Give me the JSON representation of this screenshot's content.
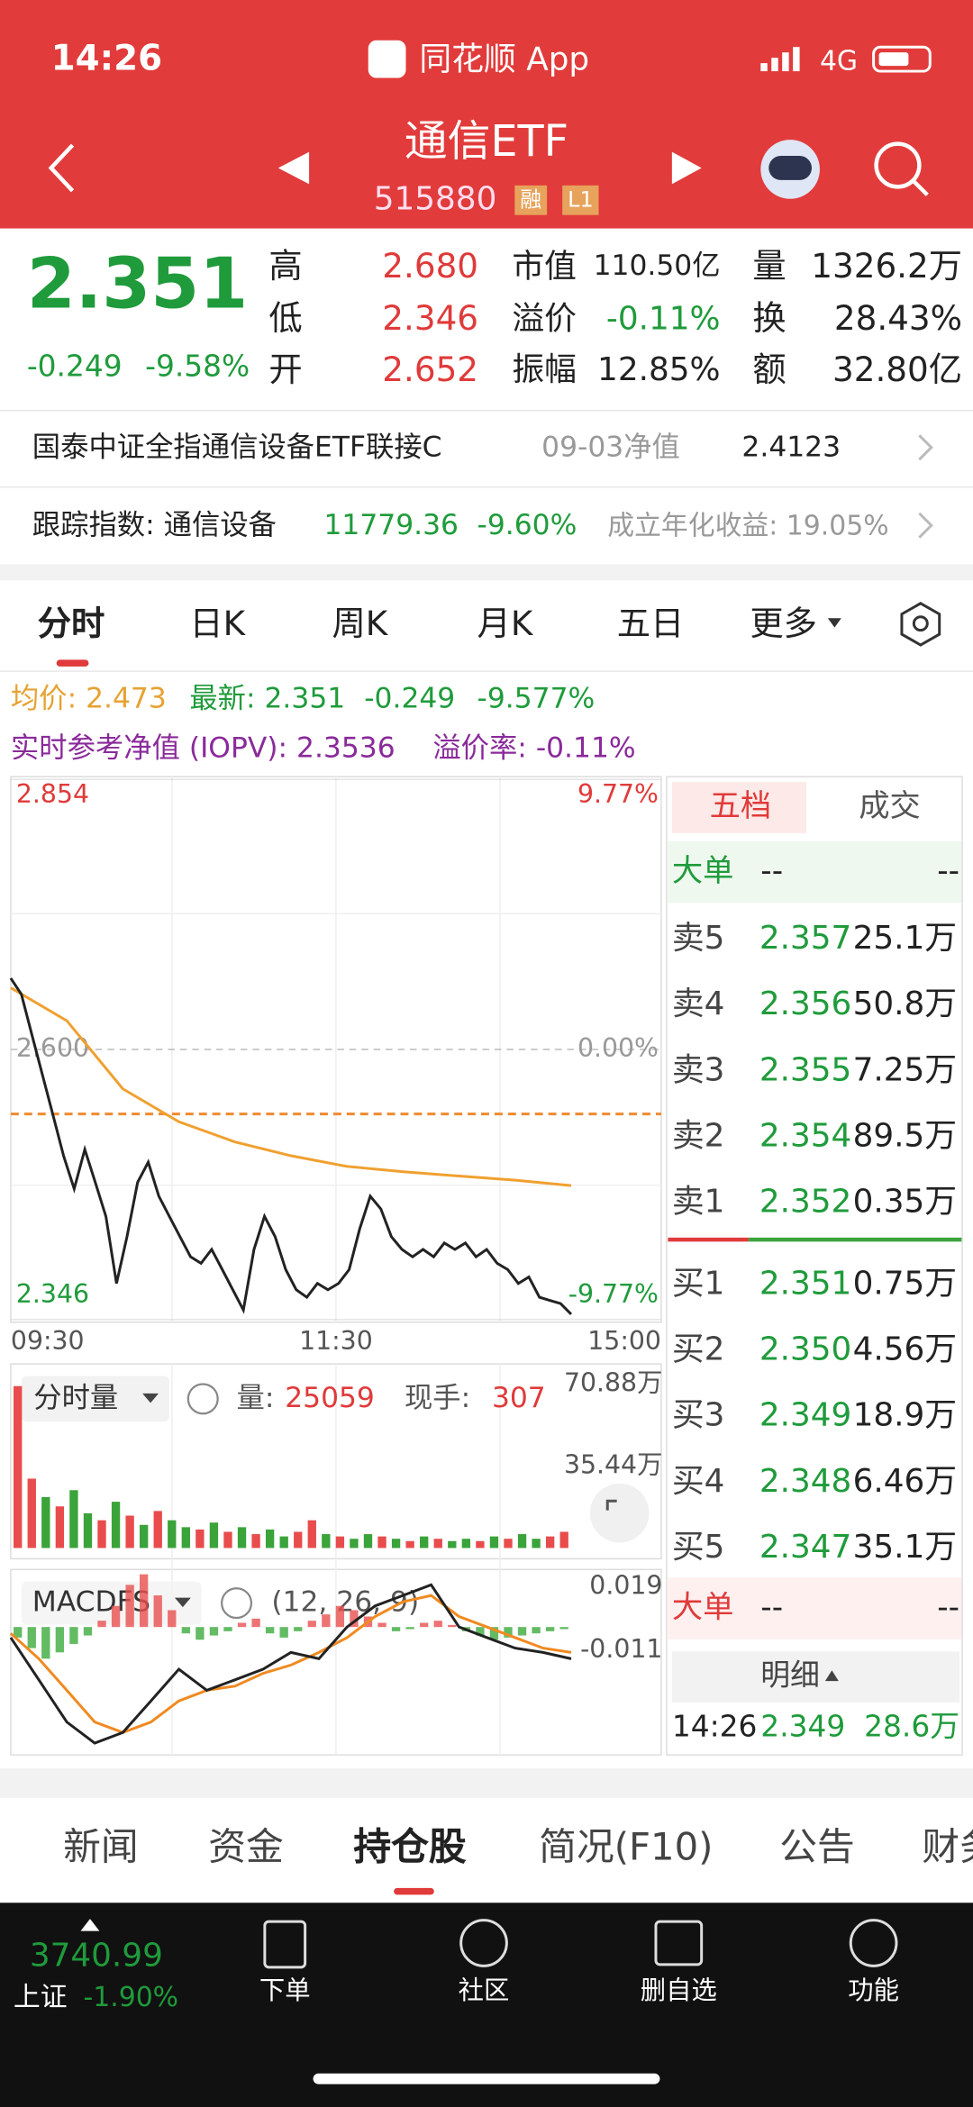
{
  "status_bar": {
    "time": "14:26",
    "app": "同花顺 App",
    "network": "4G"
  },
  "header": {
    "title": "通信ETF",
    "code": "515880",
    "tags": [
      "融",
      "L1"
    ]
  },
  "quote": {
    "price": "2.351",
    "change": "-0.249",
    "change_pct": "-9.58%",
    "stats": [
      [
        "高",
        "2.680"
      ],
      [
        "低",
        "2.346"
      ],
      [
        "开",
        "2.652"
      ],
      [
        "市值",
        "110.50亿"
      ],
      [
        "溢价",
        "-0.11%"
      ],
      [
        "振幅",
        "12.85%"
      ],
      [
        "量",
        "1326.2万"
      ],
      [
        "换",
        "28.43%"
      ],
      [
        "额",
        "32.80亿"
      ]
    ]
  },
  "fund_row": {
    "name": "国泰中证全指通信设备ETF联接C",
    "nav_label": "09-03净值",
    "nav": "2.4123"
  },
  "index_row": {
    "label": "跟踪指数: 通信设备",
    "value": "11779.36",
    "change": "-9.60%",
    "annual": "成立年化收益: 19.05%"
  },
  "chart_tabs": [
    "分时",
    "日K",
    "周K",
    "月K",
    "五日",
    "更多"
  ],
  "info": {
    "avg": "均价: 2.473",
    "latest": "最新: 2.351",
    "change": "-0.249",
    "pct": "-9.577%",
    "iopv": "实时参考净值 (IOPV): 2.3536",
    "premium": "溢价率: -0.11%"
  },
  "intraday": {
    "ylim": [
      2.346,
      2.854
    ],
    "yticks": [
      2.854,
      {
        "value": 2.6,
        "label": "2.600"
      },
      2.346
    ],
    "tick_colors": [
      "#e03a3a",
      "#999999",
      "#1f9b3b"
    ],
    "pct_labels": [
      "9.77%",
      "0.00%",
      "-9.77%"
    ],
    "times": [
      "09:30",
      "11:30",
      "15:00"
    ],
    "price_color": "#222222",
    "avg_color": "#f0a030",
    "price": [
      2.667,
      2.652,
      2.614,
      2.576,
      2.538,
      2.5,
      2.469,
      2.506,
      2.475,
      2.443,
      2.38,
      2.424,
      2.475,
      2.494,
      2.462,
      2.443,
      2.424,
      2.405,
      2.399,
      2.412,
      2.393,
      2.374,
      2.355,
      2.412,
      2.443,
      2.424,
      2.393,
      2.374,
      2.367,
      2.38,
      2.374,
      2.38,
      2.393,
      2.431,
      2.462,
      2.45,
      2.424,
      2.412,
      2.405,
      2.412,
      2.405,
      2.418,
      2.412,
      2.418,
      2.405,
      2.412,
      2.399,
      2.393,
      2.38,
      2.386,
      2.367,
      2.364,
      2.361,
      2.351
    ],
    "avg": [
      2.658,
      2.627,
      2.563,
      2.532,
      2.513,
      2.5,
      2.49,
      2.485,
      2.481,
      2.477,
      2.472
    ]
  },
  "volume": {
    "selector": "分时量",
    "vol_label": "量: ",
    "vol": "25059",
    "hand_label": "现手: ",
    "hand": "307",
    "ylim": [
      0,
      70.88
    ],
    "yticks": [
      {
        "value": 70.88,
        "label": "70.88万"
      },
      {
        "value": 35.44,
        "label": "35.44万"
      }
    ],
    "values": [
      70,
      30,
      22,
      18,
      25,
      15,
      12,
      20,
      14,
      10,
      16,
      12,
      9,
      8,
      11,
      7,
      9,
      6,
      8,
      5,
      7,
      12,
      6,
      5,
      4,
      6,
      5,
      4,
      3,
      5,
      4,
      3,
      4,
      3,
      5,
      4,
      6,
      4,
      5,
      7
    ],
    "colors": [
      "#e84c4c",
      "#e84c4c",
      "#3aa33a",
      "#e84c4c",
      "#3aa33a",
      "#3aa33a",
      "#e84c4c",
      "#3aa33a",
      "#e84c4c",
      "#3aa33a",
      "#e84c4c",
      "#3aa33a",
      "#3aa33a",
      "#e84c4c",
      "#3aa33a",
      "#e84c4c",
      "#3aa33a",
      "#e84c4c",
      "#3aa33a",
      "#3aa33a",
      "#e84c4c",
      "#e84c4c",
      "#3aa33a",
      "#e84c4c",
      "#3aa33a",
      "#3aa33a",
      "#e84c4c",
      "#3aa33a",
      "#e84c4c",
      "#3aa33a",
      "#e84c4c",
      "#3aa33a",
      "#3aa33a",
      "#e84c4c",
      "#3aa33a",
      "#e84c4c",
      "#3aa33a",
      "#3aa33a",
      "#e84c4c",
      "#e84c4c"
    ]
  },
  "macd": {
    "selector": "MACDFS",
    "params": "(12, 26, 9)",
    "ylim": [
      -0.06,
      0.026
    ],
    "yticks": [
      0.019,
      -0.011
    ],
    "hist": [
      -0.005,
      -0.01,
      -0.015,
      -0.012,
      -0.008,
      -0.004,
      0.003,
      0.01,
      0.02,
      0.025,
      0.015,
      0.008,
      -0.003,
      -0.006,
      -0.004,
      -0.002,
      0.002,
      0.004,
      -0.003,
      -0.005,
      -0.002,
      0.003,
      0.006,
      0.01,
      0.008,
      0.005,
      0.002,
      -0.002,
      -0.001,
      0.002,
      0.003,
      0.001,
      -0.002,
      -0.004,
      -0.006,
      -0.005,
      -0.004,
      -0.003,
      -0.002,
      -0.001
    ],
    "dif": [
      -0.005,
      -0.025,
      -0.045,
      -0.055,
      -0.05,
      -0.035,
      -0.02,
      -0.03,
      -0.025,
      -0.02,
      -0.012,
      -0.015,
      0.0,
      0.01,
      0.015,
      0.02,
      0.0,
      -0.005,
      -0.01,
      -0.012,
      -0.015
    ],
    "dea": [
      -0.003,
      -0.015,
      -0.03,
      -0.045,
      -0.05,
      -0.045,
      -0.035,
      -0.03,
      -0.028,
      -0.022,
      -0.018,
      -0.012,
      -0.005,
      0.005,
      0.012,
      0.015,
      0.005,
      0.0,
      -0.005,
      -0.01,
      -0.012
    ]
  },
  "order_book": {
    "tabs": [
      "五档",
      "成交"
    ],
    "big_label": "大单",
    "dash": "--",
    "asks": [
      [
        "卖5",
        "2.357",
        "25.1万"
      ],
      [
        "卖4",
        "2.356",
        "50.8万"
      ],
      [
        "卖3",
        "2.355",
        "7.25万"
      ],
      [
        "卖2",
        "2.354",
        "89.5万"
      ],
      [
        "卖1",
        "2.352",
        "0.35万"
      ]
    ],
    "bids": [
      [
        "买1",
        "2.351",
        "0.75万"
      ],
      [
        "买2",
        "2.350",
        "4.56万"
      ],
      [
        "买3",
        "2.349",
        "18.9万"
      ],
      [
        "买4",
        "2.348",
        "6.46万"
      ],
      [
        "买5",
        "2.347",
        "35.1万"
      ]
    ],
    "detail": "明细",
    "last": [
      "14:26",
      "2.349",
      "28.6万"
    ]
  },
  "bottom_tabs": [
    "新闻",
    "资金",
    "持仓股",
    "简况(F10)",
    "公告",
    "财务"
  ],
  "footer": {
    "index": "3740.99",
    "name": "上证",
    "pct": "-1.90%",
    "buttons": [
      "下单",
      "社区",
      "删自选",
      "功能"
    ]
  }
}
